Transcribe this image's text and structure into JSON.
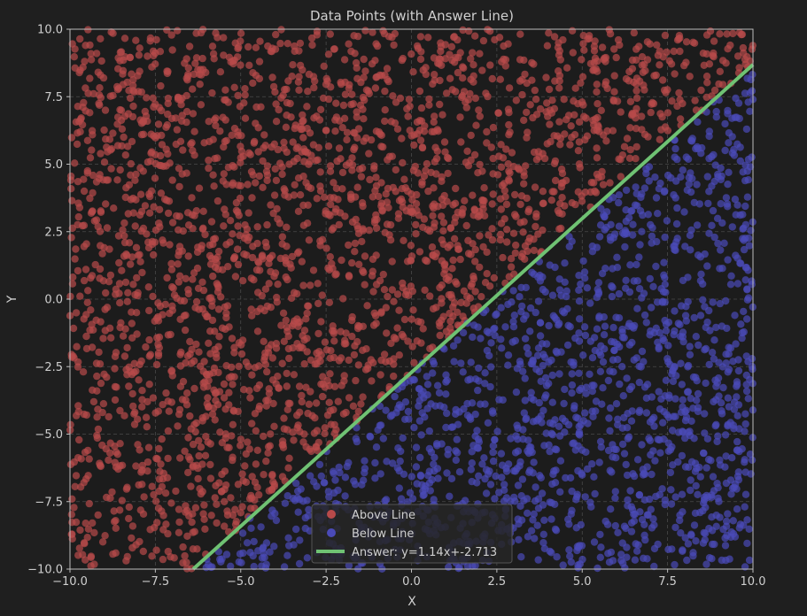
{
  "chart_data": {
    "type": "scatter",
    "title": "Data Points (with Answer Line)",
    "xlabel": "X",
    "ylabel": "Y",
    "xlim": [
      -10,
      10
    ],
    "ylim": [
      -10,
      10
    ],
    "x_ticks": [
      -10,
      -7.5,
      -5,
      -2.5,
      0,
      2.5,
      5,
      7.5,
      10
    ],
    "y_ticks": [
      -10,
      -7.5,
      -5,
      -2.5,
      0,
      2.5,
      5,
      7.5,
      10
    ],
    "x_tick_labels": [
      "−10.0",
      "−7.5",
      "−5.0",
      "−2.5",
      "0.0",
      "2.5",
      "5.0",
      "7.5",
      "10.0"
    ],
    "y_tick_labels": [
      "−10.0",
      "−7.5",
      "−5.0",
      "−2.5",
      "0.0",
      "2.5",
      "5.0",
      "7.5",
      "10.0"
    ],
    "grid": true,
    "grid_style": "dashed",
    "legend_position": "bottom-center",
    "colors": {
      "background": "#1f1f1f",
      "plot_background": "#1c1c1c",
      "axis": "#bdbdbd",
      "text": "#cfcfcf",
      "grid": "#4a4a4a",
      "above": "#b84a4a",
      "below": "#4a4ab8",
      "line": "#6fc273"
    },
    "answer_line": {
      "slope": 1.14,
      "intercept": -2.713
    },
    "series": [
      {
        "name": "Above Line",
        "color": "#b84a4a",
        "marker": "circle",
        "alpha": 0.7,
        "approx_count": 2600,
        "rule": "y > 1.14x + -2.713",
        "domain_x": [
          -10,
          10
        ],
        "domain_y": [
          -10,
          10
        ]
      },
      {
        "name": "Below Line",
        "color": "#4a4ab8",
        "marker": "circle",
        "alpha": 0.7,
        "approx_count": 1400,
        "rule": "y < 1.14x + -2.713",
        "domain_x": [
          -10,
          10
        ],
        "domain_y": [
          -10,
          10
        ]
      }
    ],
    "legend": {
      "entries": [
        {
          "label": "Above Line",
          "kind": "marker",
          "color": "#b84a4a"
        },
        {
          "label": "Below Line",
          "kind": "marker",
          "color": "#4a4ab8"
        },
        {
          "label": "Answer: y=1.14x+-2.713",
          "kind": "line",
          "color": "#6fc273"
        }
      ]
    }
  }
}
